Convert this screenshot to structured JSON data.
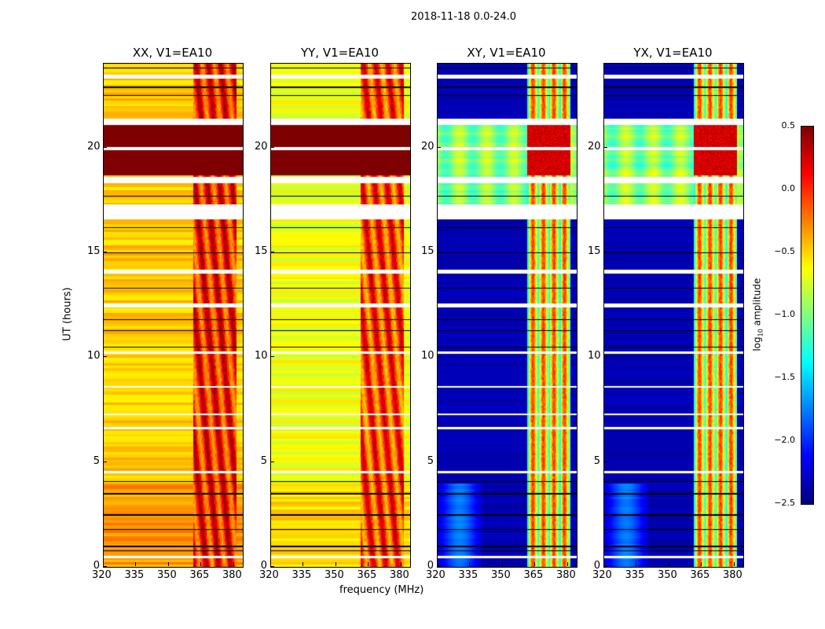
{
  "chart_data": {
    "type": "heatmap",
    "title": "2018-11-18 0.0-24.0",
    "xlabel": "frequency (MHz)",
    "ylabel": "UT (hours)",
    "xlim": [
      320,
      384
    ],
    "ylim": [
      0,
      24
    ],
    "xticks": [
      "320",
      "335",
      "350",
      "365",
      "380"
    ],
    "yticks": [
      "0",
      "5",
      "10",
      "15",
      "20"
    ],
    "colorbar": {
      "label": "log10 amplitude",
      "label_main": "log",
      "label_sub": "10",
      "label_rest": " amplitude",
      "range": [
        -2.5,
        0.5
      ],
      "ticks": [
        "0.5",
        "0.0",
        "−0.5",
        "−1.0",
        "−1.5",
        "−2.0",
        "−2.5"
      ],
      "colormap": "jet"
    },
    "panels": [
      {
        "title": "XX, V1=EA10",
        "base": -0.6,
        "band": -0.1,
        "sat": 0.5
      },
      {
        "title": "YY, V1=EA10",
        "base": -0.8,
        "band": -0.2,
        "sat": 0.5
      },
      {
        "title": "XY, V1=EA10",
        "base": -2.4,
        "band": -0.7,
        "sat": -1.0
      },
      {
        "title": "YX, V1=EA10",
        "base": -2.4,
        "band": -0.7,
        "sat": -1.0
      }
    ],
    "band_freq_MHz": [
      361,
      381
    ],
    "saturated_hours": [
      [
        18.7,
        21.1
      ]
    ],
    "flagged_hours": [
      [
        23.3,
        23.5
      ],
      [
        21.1,
        21.4
      ],
      [
        19.9,
        20.05
      ],
      [
        18.3,
        18.6
      ],
      [
        16.6,
        17.3
      ],
      [
        14.0,
        14.2
      ],
      [
        12.4,
        12.6
      ],
      [
        10.2,
        10.3
      ],
      [
        8.55,
        8.65
      ],
      [
        7.25,
        7.35
      ],
      [
        6.6,
        6.7
      ],
      [
        4.5,
        4.6
      ],
      [
        0.45,
        0.55
      ]
    ],
    "black_lines_hours": [
      23.8,
      22.9,
      22.5,
      17.7,
      16.2,
      15.0,
      13.3,
      11.8,
      11.3,
      10.5,
      4.1,
      3.5,
      2.5,
      1.8,
      1.0,
      0.8
    ]
  }
}
